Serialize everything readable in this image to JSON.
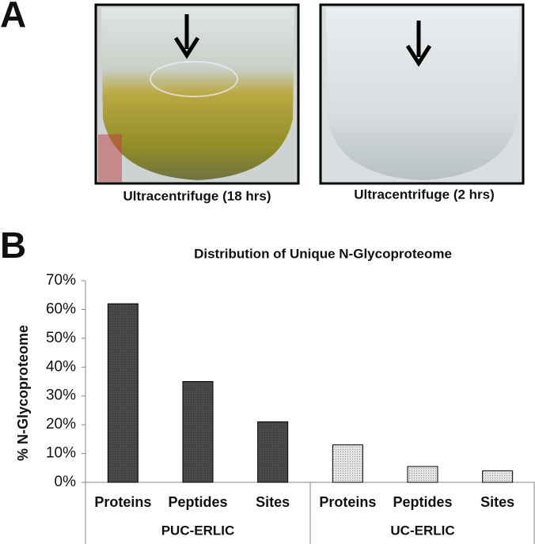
{
  "panel_labels": [
    "A",
    "B"
  ],
  "photos": [
    {
      "caption": "Ultracentrifuge (18 hrs)"
    },
    {
      "caption": "Ultracentrifuge (2 hrs)"
    }
  ],
  "chart_data": {
    "type": "bar",
    "title": "Distribution of  Unique N-Glycoproteome",
    "ylabel": "% N-Glycoproteome",
    "groups": [
      {
        "name": "PUC-ERLIC",
        "color": "#4a4a4a",
        "categories": [
          "Proteins",
          "Peptides",
          "Sites"
        ],
        "values": [
          62,
          35,
          21
        ]
      },
      {
        "name": "UC-ERLIC",
        "color": "#e4e4e4",
        "categories": [
          "Proteins",
          "Peptides",
          "Sites"
        ],
        "values": [
          13,
          5.5,
          4
        ]
      }
    ],
    "ylim": [
      0,
      70
    ],
    "yticks": [
      {
        "value": 0,
        "label": "0%"
      },
      {
        "value": 10,
        "label": "10%"
      },
      {
        "value": 20,
        "label": "20%"
      },
      {
        "value": 30,
        "label": "30%"
      },
      {
        "value": 40,
        "label": "40%"
      },
      {
        "value": 50,
        "label": "50%"
      },
      {
        "value": 60,
        "label": "60%"
      },
      {
        "value": 70,
        "label": "70%"
      }
    ],
    "grid": false
  }
}
